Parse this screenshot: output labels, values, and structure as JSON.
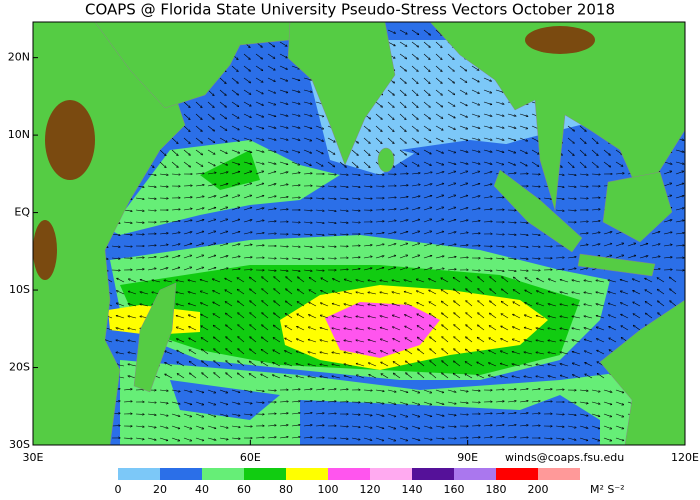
{
  "chart_data": {
    "type": "map",
    "title": "COAPS @ Florida State University Pseudo-Stress Vectors October 2018",
    "xlim": [
      30,
      120
    ],
    "ylim": [
      -30,
      24.6
    ],
    "xticks": [
      {
        "value": 30,
        "label": "30E"
      },
      {
        "value": 60,
        "label": "60E"
      },
      {
        "value": 90,
        "label": "90E"
      },
      {
        "value": 120,
        "label": "120E"
      }
    ],
    "yticks": [
      {
        "value": 20,
        "label": "20N"
      },
      {
        "value": 10,
        "label": "10N"
      },
      {
        "value": 0,
        "label": "EQ"
      },
      {
        "value": -10,
        "label": "10S"
      },
      {
        "value": -20,
        "label": "20S"
      },
      {
        "value": -30,
        "label": "30S"
      }
    ],
    "colorbar": {
      "levels": [
        0,
        20,
        40,
        60,
        80,
        100,
        120,
        140,
        160,
        180,
        200
      ],
      "colors": [
        "#7cc8f8",
        "#2b6fe8",
        "#66ee77",
        "#11cc11",
        "#ffff00",
        "#ff55ee",
        "#ffaaf0",
        "#551199",
        "#aa77ee",
        "#ff0000",
        "#ff9999"
      ],
      "units": "M² S⁻²"
    },
    "credit": "winds@coaps.fsu.edu"
  }
}
